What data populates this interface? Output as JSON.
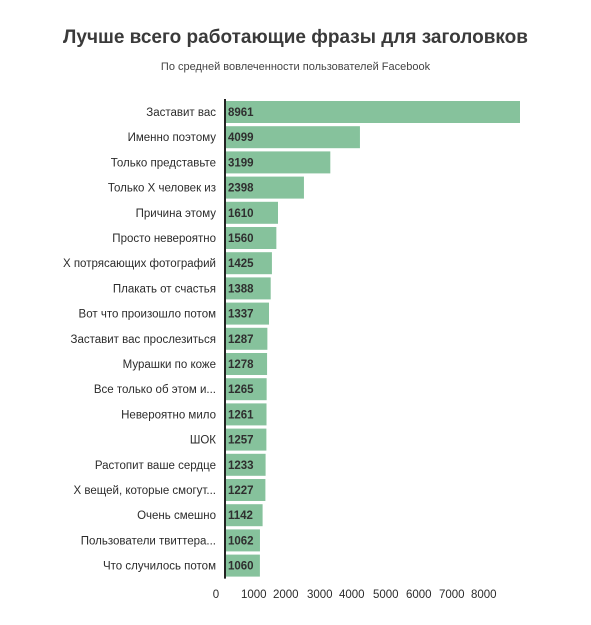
{
  "chart_data": {
    "type": "bar",
    "orientation": "horizontal",
    "title": "Лучше всего работающие фразы для заголовков",
    "subtitle": "По средней вовлеченности пользователей Facebook",
    "xlabel": "",
    "ylabel": "",
    "xlim": [
      0,
      9000
    ],
    "x_ticks": [
      "0",
      "1000",
      "2000",
      "3000",
      "4000",
      "5000",
      "6000",
      "7000",
      "8000"
    ],
    "grid": false,
    "bar_color": "#86c29c",
    "categories": [
      "Заставит вас",
      "Именно поэтому",
      "Только представьте",
      "Только Х человек из",
      "Причина этому",
      "Просто невероятно",
      "Х потрясающих фотографий",
      "Плакать от счастья",
      "Вот что произошло потом",
      "Заставит вас прослезиться",
      "Мурашки по коже",
      "Все только об этом и...",
      "Невероятно мило",
      "ШОК",
      "Растопит ваше сердце",
      "Х вещей, которые смогут...",
      "Очень смешно",
      "Пользователи твиттера...",
      "Что случилось потом"
    ],
    "values": [
      8961,
      4099,
      3199,
      2398,
      1610,
      1560,
      1425,
      1388,
      1337,
      1287,
      1278,
      1265,
      1261,
      1257,
      1233,
      1227,
      1142,
      1062,
      1060
    ]
  }
}
